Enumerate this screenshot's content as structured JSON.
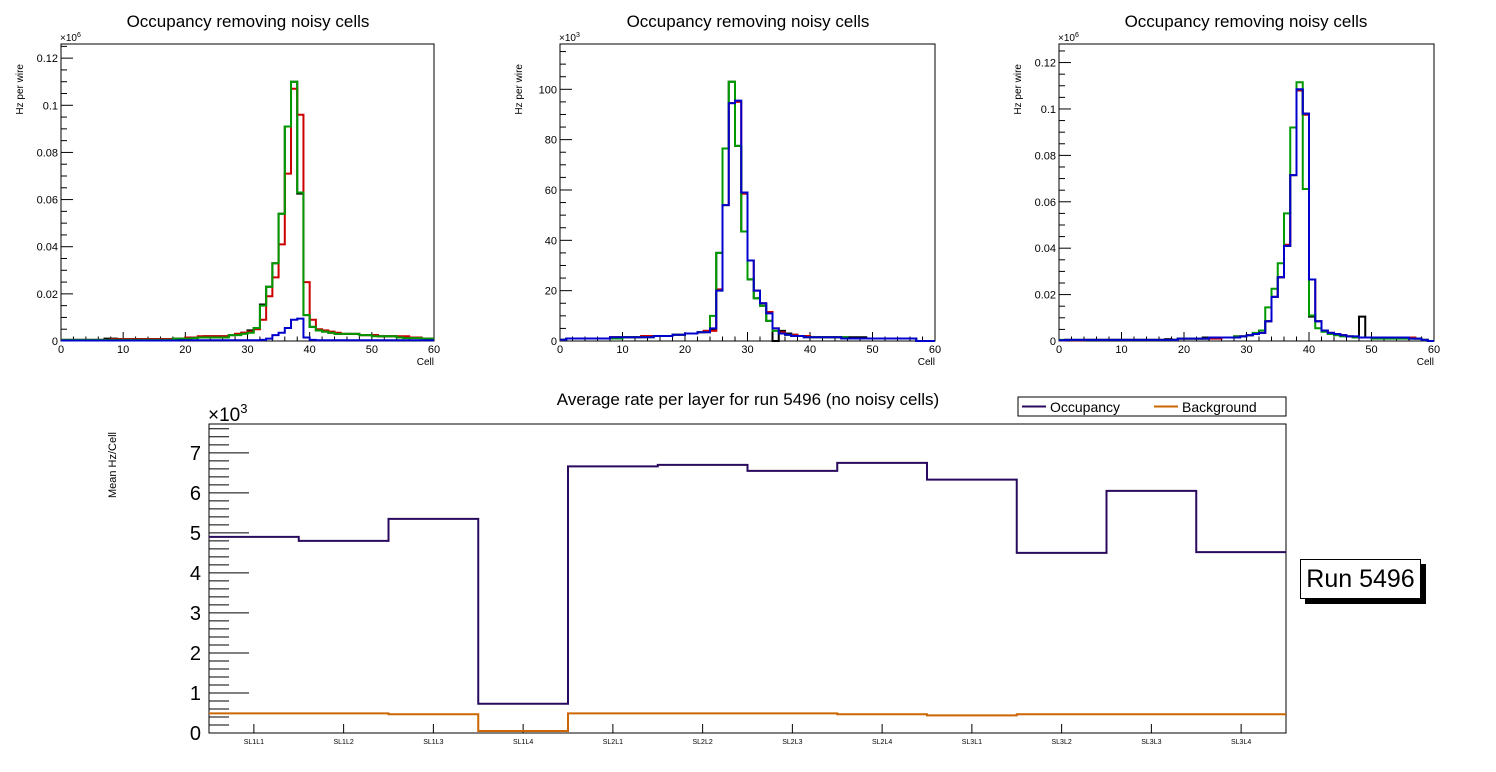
{
  "chart_data": [
    {
      "type": "line",
      "subtype": "histogram-step",
      "title": "Occupancy removing noisy cells",
      "xlabel": "Cell",
      "ylabel": "Hz per wire",
      "yexponent_label": "×10",
      "yexponent_sup": "6",
      "xlim": [
        0,
        60
      ],
      "ylim": [
        0,
        0.126
      ],
      "xticks": [
        0,
        10,
        20,
        30,
        40,
        50,
        60
      ],
      "yticks": [
        0,
        0.02,
        0.04,
        0.06,
        0.08,
        0.1,
        0.12
      ],
      "ytick_labels": [
        "0",
        "0.02",
        "0.04",
        "0.06",
        "0.08",
        "0.1",
        "0.12"
      ],
      "grid": false,
      "series": [
        {
          "name": "black",
          "color": "#000000",
          "values": [
            0.0005,
            0.0005,
            0.0005,
            0.0005,
            0.0005,
            0.0005,
            0.0005,
            0.001,
            0.001,
            0.0008,
            0.0008,
            0.0008,
            0.0008,
            0.0008,
            0.0008,
            0.0008,
            0.0008,
            0.0008,
            0.001,
            0.001,
            0.0015,
            0.0015,
            0.0015,
            0.002,
            0.002,
            0.002,
            0.002,
            0.0025,
            0.003,
            0.0035,
            0.0045,
            0.0055,
            0.0155,
            0.023,
            0.033,
            0.054,
            0.091,
            0.11,
            0.0625,
            0.011,
            0.006,
            0.0045,
            0.004,
            0.0035,
            0.003,
            0.003,
            0.003,
            0.003,
            0.0025,
            0.0025,
            0.0025,
            0.002,
            0.002,
            0.002,
            0.0015,
            0.0015,
            0.0015,
            0.0015,
            0.001,
            0.001
          ]
        },
        {
          "name": "red",
          "color": "#cc0000",
          "values": [
            0.0005,
            0.0005,
            0.0005,
            0.0005,
            0.0005,
            0.0005,
            0.0005,
            0.0005,
            0.0008,
            0.0008,
            0.0008,
            0.0008,
            0.0008,
            0.0008,
            0.0008,
            0.0008,
            0.0008,
            0.0008,
            0.001,
            0.001,
            0.0015,
            0.0015,
            0.002,
            0.002,
            0.002,
            0.002,
            0.002,
            0.0025,
            0.003,
            0.0035,
            0.004,
            0.005,
            0.009,
            0.019,
            0.027,
            0.041,
            0.071,
            0.107,
            0.096,
            0.025,
            0.009,
            0.005,
            0.0045,
            0.004,
            0.0035,
            0.003,
            0.003,
            0.003,
            0.0025,
            0.0025,
            0.0025,
            0.002,
            0.002,
            0.002,
            0.002,
            0.002,
            0.0015,
            0.0015,
            0.001,
            0.001
          ]
        },
        {
          "name": "green",
          "color": "#009900",
          "values": [
            0.0005,
            0.0005,
            0.0005,
            0.0005,
            0.0005,
            0.0005,
            0.0005,
            0.0005,
            0.0005,
            0.0005,
            0.0005,
            0.0005,
            0.0005,
            0.0005,
            0.0005,
            0.0005,
            0.0005,
            0.0005,
            0.001,
            0.001,
            0.001,
            0.0012,
            0.0015,
            0.0015,
            0.0015,
            0.0015,
            0.0015,
            0.0025,
            0.0025,
            0.003,
            0.0035,
            0.0055,
            0.015,
            0.023,
            0.033,
            0.054,
            0.091,
            0.11,
            0.063,
            0.011,
            0.006,
            0.0045,
            0.004,
            0.0035,
            0.003,
            0.003,
            0.003,
            0.003,
            0.0025,
            0.0025,
            0.002,
            0.002,
            0.002,
            0.002,
            0.0015,
            0.0012,
            0.0012,
            0.0012,
            0.001,
            0.001
          ]
        },
        {
          "name": "blue",
          "color": "#0000cc",
          "values": [
            0.0002,
            0.0002,
            0.0002,
            0.0002,
            0.0002,
            0.0002,
            0.0002,
            0.0002,
            0.0002,
            0.0002,
            0.0002,
            0.0002,
            0.0002,
            0.0002,
            0.0002,
            0.0002,
            0.0002,
            0.0002,
            0.0002,
            0.0003,
            0.0003,
            0.0003,
            0.0003,
            0.0003,
            0.0003,
            0.0003,
            0.0003,
            0.0003,
            0.0003,
            0.0003,
            0.0003,
            0.0003,
            0.0005,
            0.001,
            0.0025,
            0.0035,
            0.0055,
            0.009,
            0.0095,
            0.0015,
            0.0005,
            0.0003,
            0.0003,
            0.0003,
            0.0003,
            0.0003,
            0.0003,
            0.0003,
            0.0003,
            0.0003,
            0.0003,
            0.0003,
            0.0003,
            0.0003,
            0.0003,
            0.0003,
            0.0003,
            0.0003,
            0.0003,
            0.0003
          ]
        }
      ]
    },
    {
      "type": "line",
      "subtype": "histogram-step",
      "title": "Occupancy removing noisy cells",
      "xlabel": "Cell",
      "ylabel": "Hz per wire",
      "yexponent_label": "×10",
      "yexponent_sup": "3",
      "xlim": [
        0,
        60
      ],
      "ylim": [
        0,
        118
      ],
      "xticks": [
        0,
        10,
        20,
        30,
        40,
        50,
        60
      ],
      "yticks": [
        0,
        20,
        40,
        60,
        80,
        100
      ],
      "ytick_labels": [
        "0",
        "20",
        "40",
        "60",
        "80",
        "100"
      ],
      "grid": false,
      "series": [
        {
          "name": "black",
          "color": "#000000",
          "values": [
            0.5,
            1,
            1,
            1,
            1,
            1,
            1,
            1,
            1.5,
            1.5,
            1.5,
            1.5,
            1.5,
            2,
            2,
            2,
            2,
            2,
            2.5,
            2.5,
            3,
            3,
            3.5,
            4,
            4.5,
            35,
            76.5,
            103,
            77.5,
            43.5,
            24.5,
            17,
            14,
            8,
            0,
            4,
            3,
            2.5,
            2,
            2,
            1.5,
            1.5,
            1.5,
            1.5,
            1.5,
            1.5,
            1.5,
            1.5,
            1.5,
            1,
            1,
            1,
            1,
            1,
            1,
            1,
            1,
            0,
            0,
            0
          ]
        },
        {
          "name": "red",
          "color": "#cc0000",
          "values": [
            0.5,
            1,
            1,
            1,
            1,
            1,
            1,
            1,
            1.5,
            1.5,
            1.5,
            1.5,
            1.5,
            2,
            2,
            2,
            2,
            2,
            2.5,
            2.5,
            3,
            3,
            3.5,
            4,
            4,
            20.5,
            54,
            94.5,
            95,
            58.5,
            32,
            20,
            15,
            11.5,
            5,
            3.5,
            2.5,
            2.5,
            2,
            2,
            1.5,
            1.5,
            1.5,
            1.5,
            1.5,
            1,
            1,
            1,
            1,
            1,
            1,
            1,
            1,
            1,
            1,
            1,
            1,
            0,
            0,
            0
          ]
        },
        {
          "name": "green",
          "color": "#009900",
          "values": [
            0.5,
            1,
            1,
            1,
            1,
            1,
            1,
            1,
            1,
            1,
            1.5,
            1.5,
            1.5,
            1.5,
            1.5,
            2,
            2,
            2,
            2.5,
            2.5,
            3,
            3,
            3.5,
            3.5,
            10,
            35,
            76.5,
            103,
            77.5,
            43.5,
            24.5,
            17,
            14,
            8,
            4,
            3,
            2.5,
            2,
            2,
            1.5,
            1.5,
            1.5,
            1.5,
            1.5,
            1.5,
            1.5,
            1,
            1,
            1,
            1,
            1,
            1,
            1,
            1,
            1,
            1,
            1,
            0,
            0,
            0
          ]
        },
        {
          "name": "blue",
          "color": "#0000cc",
          "values": [
            0.5,
            1,
            1,
            1,
            1,
            1,
            1,
            1,
            1.5,
            1.5,
            1.5,
            1.5,
            1.5,
            1.5,
            1.5,
            2,
            2,
            2,
            2.5,
            2.5,
            3,
            3,
            3.5,
            3.5,
            5,
            20,
            54,
            94.5,
            95.5,
            59,
            32,
            20,
            15,
            11,
            5,
            3,
            2.5,
            2,
            2,
            1.5,
            1.5,
            1.5,
            1.5,
            1.5,
            1.5,
            1,
            1,
            1,
            1,
            1,
            1,
            1,
            1,
            1,
            1,
            1,
            1,
            0,
            0,
            0
          ]
        }
      ]
    },
    {
      "type": "line",
      "subtype": "histogram-step",
      "title": "Occupancy removing noisy cells",
      "xlabel": "Cell",
      "ylabel": "Hz per wire",
      "yexponent_label": "×10",
      "yexponent_sup": "6",
      "xlim": [
        0,
        60
      ],
      "ylim": [
        0,
        0.128
      ],
      "xticks": [
        0,
        10,
        20,
        30,
        40,
        50,
        60
      ],
      "yticks": [
        0,
        0.02,
        0.04,
        0.06,
        0.08,
        0.1,
        0.12
      ],
      "ytick_labels": [
        "0",
        "0.02",
        "0.04",
        "0.06",
        "0.08",
        "0.1",
        "0.12"
      ],
      "grid": false,
      "series": [
        {
          "name": "black",
          "color": "#000000",
          "values": [
            0.0003,
            0.0005,
            0.0005,
            0.0005,
            0.0005,
            0.0005,
            0.0005,
            0.0005,
            0.0005,
            0.0005,
            0.0005,
            0.0005,
            0.0005,
            0.0005,
            0.0005,
            0.0005,
            0.0005,
            0.0008,
            0.0005,
            0.001,
            0.001,
            0.001,
            0.001,
            0.0015,
            0.0015,
            0.0015,
            0.0015,
            0.0015,
            0.002,
            0.002,
            0.0025,
            0.003,
            0.0045,
            0.0085,
            0.019,
            0.0275,
            0.041,
            0.0715,
            0.108,
            0.098,
            0.0105,
            0.0085,
            0.0045,
            0.0035,
            0.003,
            0.0025,
            0.002,
            0.0015,
            0.0105,
            0.0015,
            0.0015,
            0.0015,
            0.0015,
            0.0015,
            0.0015,
            0.0015,
            0.0015,
            0.001,
            0.0005,
            0
          ]
        },
        {
          "name": "red",
          "color": "#cc0000",
          "values": [
            0.0003,
            0.0005,
            0.0003,
            0.0003,
            0.0005,
            0.0005,
            0.0005,
            0.0005,
            0.0005,
            0.0005,
            0.0005,
            0.0005,
            0.0005,
            0.0005,
            0.0005,
            0.0005,
            0.0005,
            0.0005,
            0.0005,
            0.001,
            0.001,
            0.001,
            0.001,
            0.001,
            0.001,
            0.001,
            0.0015,
            0.0015,
            0.002,
            0.002,
            0.0025,
            0.003,
            0.0035,
            0.0085,
            0.019,
            0.0275,
            0.0415,
            0.0715,
            0.108,
            0.0975,
            0.0265,
            0.0085,
            0.0045,
            0.0035,
            0.003,
            0.0025,
            0.002,
            0.0015,
            0.0015,
            0.0015,
            0.0015,
            0.0015,
            0.0015,
            0.0015,
            0.0015,
            0.0015,
            0.0015,
            0.001,
            0.0005,
            0
          ]
        },
        {
          "name": "green",
          "color": "#009900",
          "values": [
            0.0005,
            0.0005,
            0.0005,
            0.0005,
            0.0005,
            0.0005,
            0.0005,
            0.0005,
            0.0005,
            0.0005,
            0.0005,
            0.0005,
            0.0005,
            0.0005,
            0.0005,
            0.0005,
            0.0005,
            0.0005,
            0.0005,
            0.001,
            0.001,
            0.001,
            0.001,
            0.001,
            0.0015,
            0.0015,
            0.0015,
            0.0015,
            0.002,
            0.002,
            0.0025,
            0.0035,
            0.0045,
            0.0145,
            0.0225,
            0.0335,
            0.055,
            0.092,
            0.1115,
            0.0655,
            0.011,
            0.0055,
            0.004,
            0.003,
            0.0025,
            0.002,
            0.002,
            0.0015,
            0.0015,
            0.0015,
            0.001,
            0.001,
            0.001,
            0.001,
            0.001,
            0.001,
            0.001,
            0.001,
            0.0005,
            0
          ]
        },
        {
          "name": "blue",
          "color": "#0000cc",
          "values": [
            0.0003,
            0.0005,
            0.0005,
            0.0005,
            0.0005,
            0.0005,
            0.0005,
            0.0005,
            0.0005,
            0.0005,
            0.0005,
            0.0005,
            0.0005,
            0.0005,
            0.0005,
            0.0005,
            0.0005,
            0.0005,
            0.0005,
            0.001,
            0.001,
            0.001,
            0.001,
            0.001,
            0.0015,
            0.0015,
            0.0015,
            0.0015,
            0.0015,
            0.002,
            0.0025,
            0.003,
            0.0035,
            0.0085,
            0.019,
            0.0275,
            0.041,
            0.0715,
            0.1085,
            0.098,
            0.0265,
            0.0085,
            0.0045,
            0.0035,
            0.003,
            0.0025,
            0.002,
            0.002,
            0.0015,
            0.0015,
            0.0015,
            0.0015,
            0.0015,
            0.0015,
            0.0015,
            0.0015,
            0.001,
            0.001,
            0.0005,
            0
          ]
        }
      ]
    },
    {
      "type": "line",
      "subtype": "histogram-step",
      "title": "Average rate per layer for run 5496 (no noisy cells)",
      "xlabel": "",
      "ylabel": "Mean Hz/Cell",
      "yexponent_label": "×10",
      "yexponent_sup": "3",
      "categories": [
        "SL1L1",
        "SL1L2",
        "SL1L3",
        "SL1L4",
        "SL2L1",
        "SL2L2",
        "SL2L3",
        "SL2L4",
        "SL3L1",
        "SL3L2",
        "SL3L3",
        "SL3L4"
      ],
      "ylim": [
        0,
        7.72
      ],
      "yticks": [
        0,
        1,
        2,
        3,
        4,
        5,
        6,
        7
      ],
      "ytick_labels": [
        "0",
        "1",
        "2",
        "3",
        "4",
        "5",
        "6",
        "7"
      ],
      "grid": false,
      "legend": "top-right",
      "series": [
        {
          "name": "Occupancy",
          "color": "#2a0a5e",
          "values": [
            4.9,
            4.8,
            5.35,
            0.73,
            6.66,
            6.7,
            6.55,
            6.75,
            6.33,
            4.5,
            6.05,
            4.52
          ]
        },
        {
          "name": "Background",
          "color": "#cc6600",
          "values": [
            0.49,
            0.49,
            0.47,
            0.05,
            0.49,
            0.49,
            0.49,
            0.47,
            0.44,
            0.47,
            0.47,
            0.47
          ]
        }
      ]
    }
  ],
  "annotation": {
    "run_label": "Run 5496"
  }
}
